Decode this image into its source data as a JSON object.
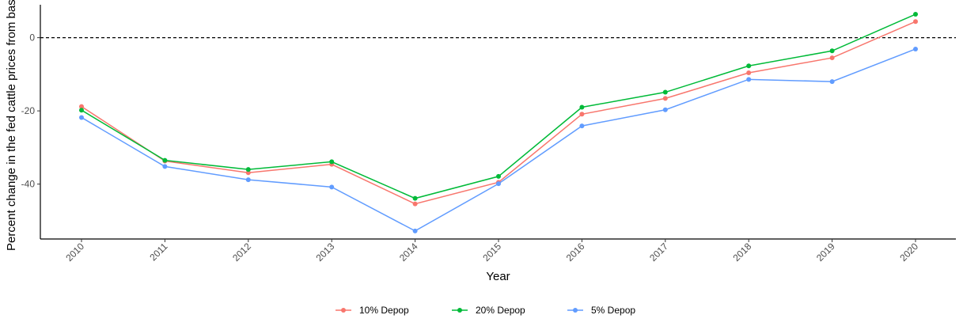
{
  "chart_data": {
    "type": "line",
    "title": "",
    "xlabel": "Year",
    "ylabel": "Percent change in the fed cattle prices from base",
    "x": [
      "2010",
      "2011",
      "2012",
      "2013",
      "2014",
      "2015",
      "2016",
      "2017",
      "2018",
      "2019",
      "2020"
    ],
    "ylim": [
      -55,
      9
    ],
    "yticks": [
      -40,
      -20,
      0
    ],
    "ytick_labels": [
      "-40",
      "-20",
      "0"
    ],
    "reference_line": {
      "y": 0,
      "style": "dashed"
    },
    "grid": false,
    "legend_position": "bottom",
    "series": [
      {
        "name": "10% Depop",
        "color": "#F8766D",
        "values": [
          -18.8,
          -33.7,
          -36.9,
          -34.6,
          -45.4,
          -39.5,
          -20.9,
          -16.6,
          -9.6,
          -5.5,
          4.4
        ]
      },
      {
        "name": "20% Depop",
        "color": "#00BA38",
        "values": [
          -19.8,
          -33.5,
          -36.0,
          -33.9,
          -43.9,
          -37.9,
          -19.0,
          -14.9,
          -7.7,
          -3.6,
          6.4
        ]
      },
      {
        "name": "5% Depop",
        "color": "#619CFF",
        "values": [
          -21.8,
          -35.2,
          -38.8,
          -40.8,
          -52.8,
          -39.9,
          -24.1,
          -19.7,
          -11.4,
          -12.0,
          -3.1
        ]
      }
    ]
  }
}
